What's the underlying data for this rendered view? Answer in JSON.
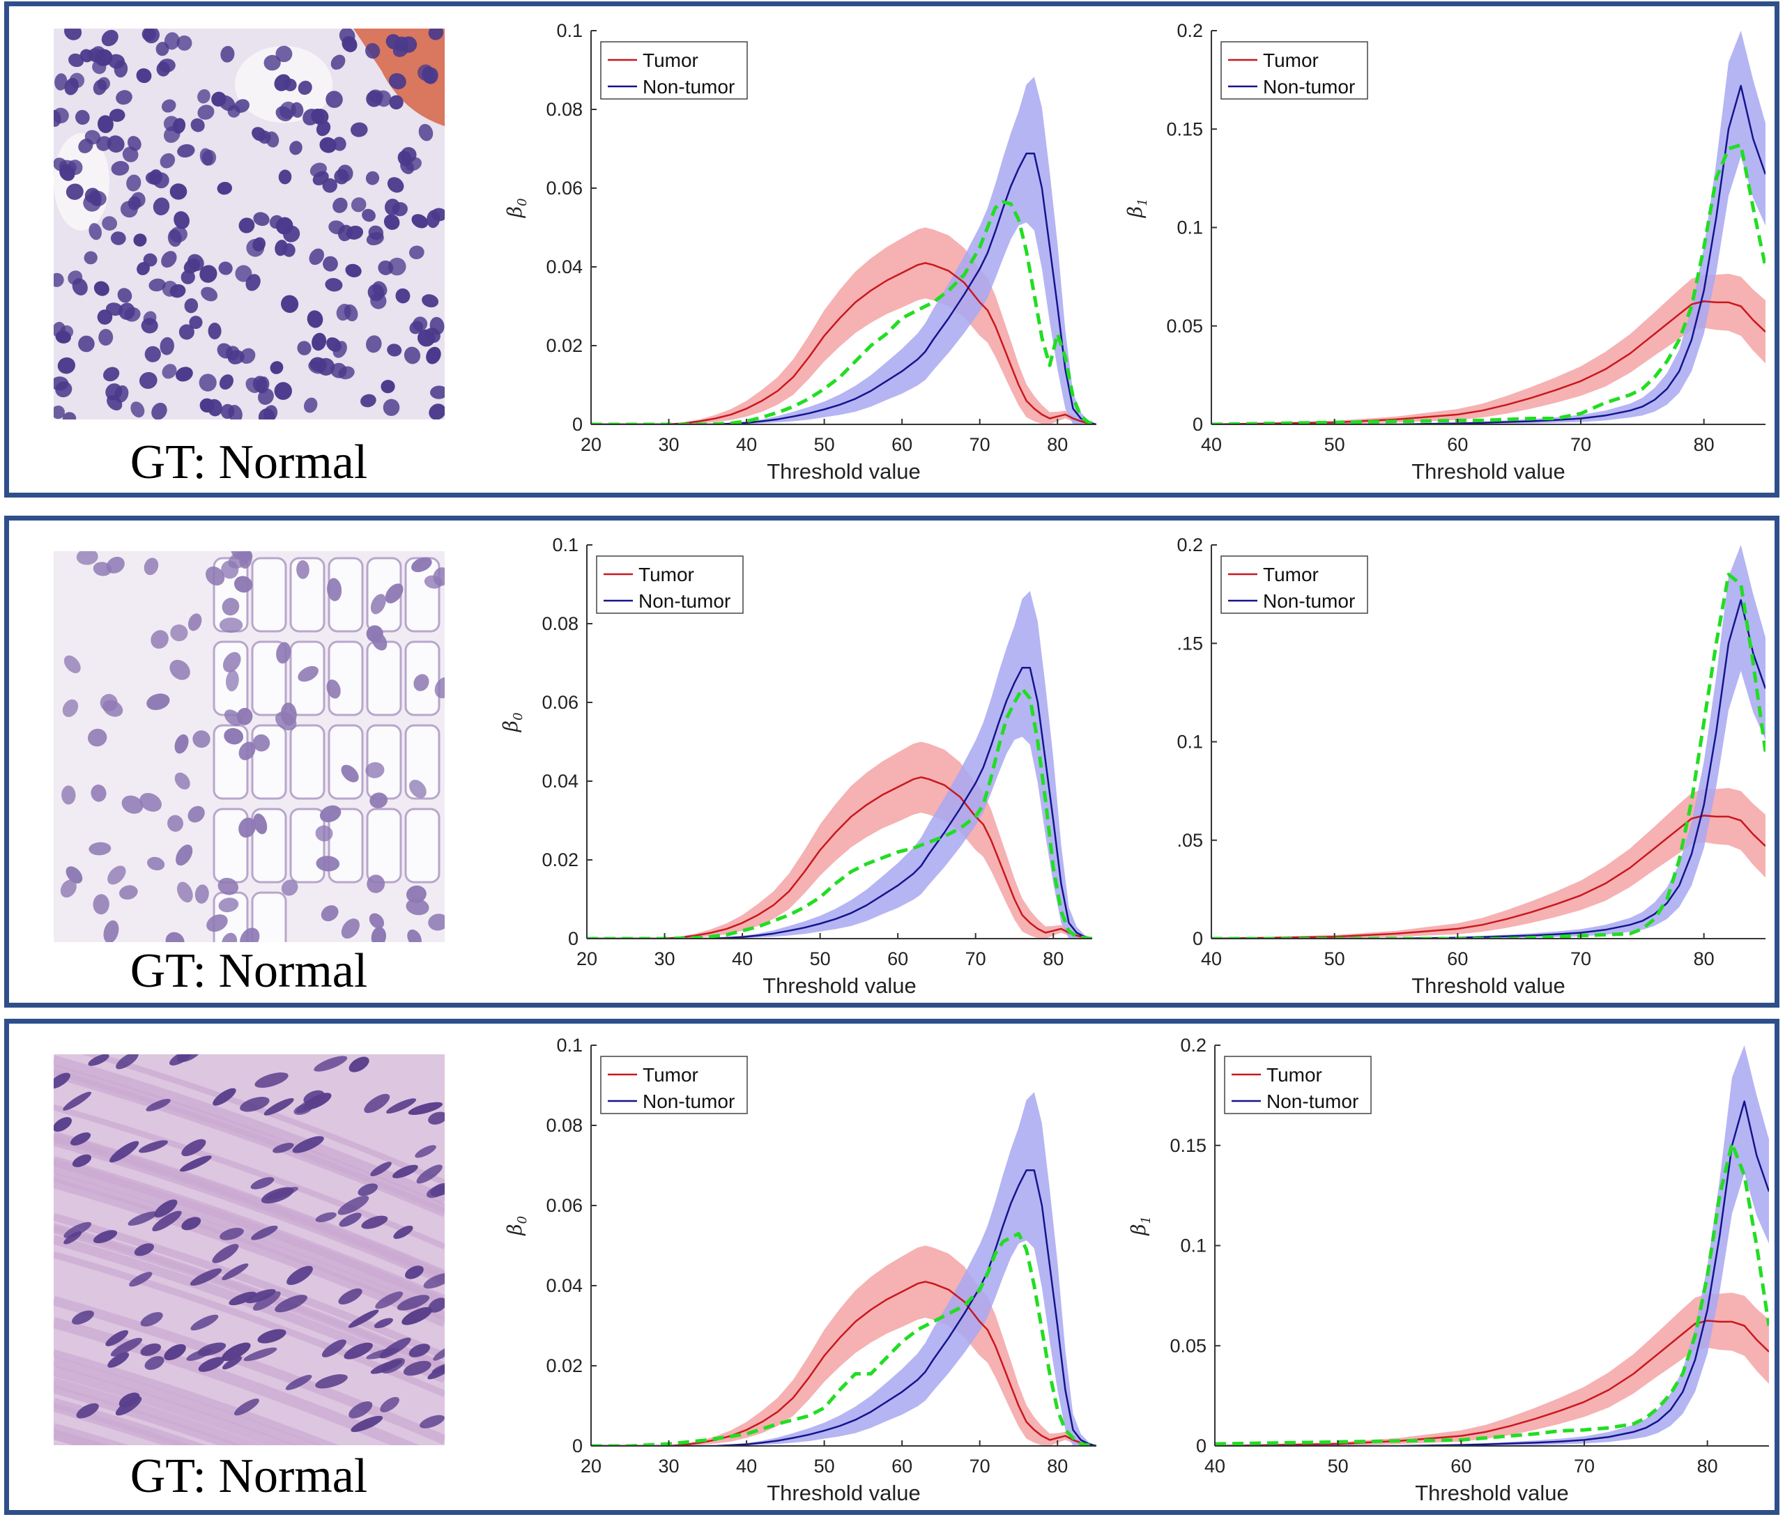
{
  "colors": {
    "tumor": "#c8181e",
    "tumor_band": "#f4a3a5",
    "nontumor": "#14148c",
    "nontumor_band": "#a8a8f2",
    "sample": "#22dd22",
    "frame": "#2f4f8a"
  },
  "panels": [
    {
      "caption": "GT: Normal",
      "tissue": "lymphocyte-rich tissue"
    },
    {
      "caption": "GT: Normal",
      "tissue": "glandular tissue"
    },
    {
      "caption": "GT: Normal",
      "tissue": "stromal tissue"
    }
  ],
  "chart_data": [
    {
      "panel": 0,
      "type": "line",
      "measure": "b0",
      "ylabel": "β0",
      "subscript": "0",
      "xlabel": "Threshold value",
      "xlim": [
        20,
        85
      ],
      "ylim": [
        0,
        0.1
      ],
      "xticks": [
        "20",
        "30",
        "40",
        "50",
        "60",
        "70",
        "80"
      ],
      "yticks": [
        "0",
        "0.02",
        "0.04",
        "0.06",
        "0.08",
        "0.1"
      ],
      "legend": [
        "Tumor",
        "Non-tumor"
      ],
      "legend_loc": "top-left",
      "sample_x": [
        20,
        30,
        35,
        38,
        40,
        42,
        44,
        46,
        48,
        50,
        52,
        54,
        56,
        58,
        60,
        62,
        64,
        66,
        68,
        70,
        71,
        72,
        73,
        74,
        75,
        76,
        77,
        78,
        79,
        80,
        81,
        82,
        83,
        84,
        85
      ],
      "sample_y": [
        0,
        0,
        0,
        0.0003,
        0.0008,
        0.0018,
        0.003,
        0.0045,
        0.0065,
        0.009,
        0.012,
        0.016,
        0.02,
        0.023,
        0.027,
        0.029,
        0.031,
        0.034,
        0.038,
        0.045,
        0.05,
        0.055,
        0.0565,
        0.056,
        0.052,
        0.044,
        0.033,
        0.022,
        0.015,
        0.023,
        0.017,
        0.007,
        0.002,
        0.0005,
        0
      ]
    },
    {
      "panel": 0,
      "type": "line",
      "measure": "b1",
      "ylabel": "β1",
      "subscript": "1",
      "xlabel": "Threshold value",
      "xlim": [
        40,
        85
      ],
      "ylim": [
        0,
        0.2
      ],
      "xticks": [
        "40",
        "50",
        "60",
        "70",
        "80"
      ],
      "yticks": [
        "0",
        "0.05",
        "0.1",
        "0.15",
        "0.2"
      ],
      "legend": [
        "Tumor",
        "Non-tumor"
      ],
      "legend_loc": "top-left",
      "sample_x": [
        40,
        45,
        50,
        55,
        60,
        62,
        64,
        66,
        68,
        70,
        72,
        74,
        75,
        76,
        77,
        78,
        79,
        80,
        81,
        82,
        83,
        84,
        85
      ],
      "sample_y": [
        0,
        0.0005,
        0.001,
        0.0015,
        0.002,
        0.002,
        0.0025,
        0.003,
        0.003,
        0.0055,
        0.011,
        0.015,
        0.018,
        0.024,
        0.032,
        0.043,
        0.06,
        0.09,
        0.125,
        0.14,
        0.142,
        0.11,
        0.08
      ]
    },
    {
      "panel": 1,
      "type": "line",
      "measure": "b0",
      "ylabel": "β0",
      "subscript": "0",
      "xlabel": "Threshold value",
      "xlim": [
        20,
        85
      ],
      "ylim": [
        0,
        0.1
      ],
      "xticks": [
        "20",
        "30",
        "40",
        "50",
        "60",
        "70",
        "80"
      ],
      "yticks": [
        "0",
        "0.02",
        "0.04",
        "0.06",
        "0.08",
        "0.1"
      ],
      "legend": [
        "Tumor",
        "Non-tumor"
      ],
      "legend_loc": "top-left",
      "sample_x": [
        20,
        30,
        35,
        38,
        40,
        42,
        44,
        46,
        48,
        50,
        52,
        54,
        56,
        58,
        60,
        62,
        64,
        66,
        68,
        70,
        71,
        72,
        73,
        74,
        75,
        76,
        77,
        78,
        79,
        80,
        81,
        82,
        83,
        84,
        85
      ],
      "sample_y": [
        0,
        0,
        0.0003,
        0.001,
        0.002,
        0.003,
        0.0045,
        0.006,
        0.008,
        0.0105,
        0.014,
        0.017,
        0.019,
        0.0205,
        0.022,
        0.023,
        0.0245,
        0.026,
        0.028,
        0.031,
        0.034,
        0.041,
        0.049,
        0.056,
        0.06,
        0.0635,
        0.061,
        0.05,
        0.035,
        0.018,
        0.007,
        0.002,
        0.0005,
        0.0002,
        0
      ]
    },
    {
      "panel": 1,
      "type": "line",
      "measure": "b1",
      "ylabel": "",
      "subscript": "",
      "xlabel": "Threshold value",
      "xlim": [
        40,
        85
      ],
      "ylim": [
        0,
        0.2
      ],
      "xticks": [
        "40",
        "50",
        "60",
        "70",
        "80"
      ],
      "yticks": [
        "0",
        ".05",
        "0.1",
        ".15",
        "0.2"
      ],
      "legend": [
        "Tumor",
        "Non-tumor"
      ],
      "legend_loc": "top-left",
      "sample_x": [
        40,
        45,
        50,
        55,
        60,
        62,
        64,
        66,
        68,
        70,
        72,
        74,
        75,
        76,
        77,
        78,
        79,
        80,
        81,
        82,
        83,
        84,
        85
      ],
      "sample_y": [
        0,
        0,
        0,
        0,
        0,
        0,
        0,
        0.0005,
        0.001,
        0.0015,
        0.002,
        0.0025,
        0.005,
        0.01,
        0.02,
        0.04,
        0.07,
        0.11,
        0.15,
        0.185,
        0.18,
        0.14,
        0.095
      ]
    },
    {
      "panel": 2,
      "type": "line",
      "measure": "b0",
      "ylabel": "β0",
      "subscript": "0",
      "xlabel": "Threshold value",
      "xlim": [
        20,
        85
      ],
      "ylim": [
        0,
        0.1
      ],
      "xticks": [
        "20",
        "30",
        "40",
        "50",
        "60",
        "70",
        "80"
      ],
      "yticks": [
        "0",
        "0.02",
        "0.04",
        "0.06",
        "0.08",
        "0.1"
      ],
      "legend": [
        "Tumor",
        "Non-tumor"
      ],
      "legend_loc": "top-left",
      "sample_x": [
        20,
        25,
        30,
        35,
        40,
        44,
        46,
        48,
        50,
        52,
        54,
        56,
        58,
        60,
        62,
        64,
        66,
        68,
        70,
        71,
        72,
        73,
        74,
        75,
        76,
        77,
        78,
        79,
        80,
        81,
        82,
        83,
        84,
        85
      ],
      "sample_y": [
        0,
        0,
        0.0005,
        0.0015,
        0.003,
        0.0055,
        0.0065,
        0.0075,
        0.0095,
        0.014,
        0.018,
        0.018,
        0.022,
        0.026,
        0.029,
        0.031,
        0.033,
        0.035,
        0.039,
        0.043,
        0.048,
        0.051,
        0.052,
        0.053,
        0.049,
        0.04,
        0.029,
        0.018,
        0.009,
        0.004,
        0.002,
        0.0005,
        0.0002,
        0
      ]
    },
    {
      "panel": 2,
      "type": "line",
      "measure": "b1",
      "ylabel": "β1",
      "subscript": "1",
      "xlabel": "Threshold value",
      "xlim": [
        40,
        85
      ],
      "ylim": [
        0,
        0.2
      ],
      "xticks": [
        "40",
        "50",
        "60",
        "70",
        "80"
      ],
      "yticks": [
        "0",
        "0.05",
        "0.1",
        "0.15",
        "0.2"
      ],
      "legend": [
        "Tumor",
        "Non-tumor"
      ],
      "legend_loc": "top-left",
      "sample_x": [
        40,
        45,
        50,
        55,
        60,
        62,
        64,
        66,
        68,
        70,
        72,
        74,
        75,
        76,
        77,
        78,
        79,
        80,
        81,
        82,
        83,
        84,
        85
      ],
      "sample_y": [
        0.001,
        0.0015,
        0.002,
        0.0025,
        0.003,
        0.004,
        0.005,
        0.006,
        0.0075,
        0.008,
        0.009,
        0.011,
        0.014,
        0.019,
        0.026,
        0.036,
        0.055,
        0.085,
        0.125,
        0.151,
        0.135,
        0.1,
        0.06
      ]
    }
  ],
  "reference_curves": {
    "b0": {
      "x": [
        20,
        25,
        30,
        32,
        34,
        36,
        38,
        40,
        42,
        44,
        46,
        48,
        50,
        52,
        54,
        56,
        58,
        60,
        62,
        63,
        64,
        66,
        68,
        70,
        71,
        72,
        73,
        74,
        75,
        76,
        77,
        78,
        79,
        80,
        81,
        82,
        83,
        84,
        85
      ],
      "tumor": [
        0,
        0,
        0,
        0.0003,
        0.0008,
        0.0015,
        0.0025,
        0.004,
        0.006,
        0.0085,
        0.012,
        0.017,
        0.0225,
        0.027,
        0.031,
        0.034,
        0.0365,
        0.0385,
        0.0405,
        0.041,
        0.0405,
        0.039,
        0.036,
        0.031,
        0.029,
        0.025,
        0.02,
        0.015,
        0.01,
        0.006,
        0.004,
        0.0025,
        0.0015,
        0.002,
        0.0025,
        0.0015,
        0.0008,
        0.0003,
        0
      ],
      "tumor_sd": [
        0,
        0,
        0,
        0.0002,
        0.0005,
        0.0009,
        0.0014,
        0.002,
        0.0028,
        0.0035,
        0.0045,
        0.0055,
        0.0065,
        0.0072,
        0.0078,
        0.0082,
        0.0085,
        0.0088,
        0.009,
        0.009,
        0.009,
        0.009,
        0.0088,
        0.0085,
        0.0082,
        0.0078,
        0.007,
        0.0062,
        0.0052,
        0.0042,
        0.0032,
        0.0024,
        0.0016,
        0.0012,
        0.001,
        0.0008,
        0.0005,
        0.0002,
        0
      ],
      "nontumor": [
        0,
        0,
        0,
        0,
        0,
        0,
        0.0002,
        0.0004,
        0.0008,
        0.0013,
        0.002,
        0.0028,
        0.0038,
        0.005,
        0.0065,
        0.0085,
        0.011,
        0.0135,
        0.0165,
        0.0185,
        0.0215,
        0.027,
        0.033,
        0.0395,
        0.0435,
        0.049,
        0.055,
        0.0605,
        0.065,
        0.0688,
        0.0688,
        0.06,
        0.045,
        0.03,
        0.014,
        0.004,
        0.0015,
        0.0005,
        0
      ],
      "nontumor_sd": [
        0,
        0,
        0,
        0,
        0,
        0,
        0.0002,
        0.0003,
        0.0005,
        0.0008,
        0.0012,
        0.0016,
        0.002,
        0.0026,
        0.0033,
        0.004,
        0.0048,
        0.0057,
        0.0066,
        0.0072,
        0.0078,
        0.0088,
        0.0098,
        0.0108,
        0.0114,
        0.012,
        0.0128,
        0.0135,
        0.0145,
        0.0175,
        0.0195,
        0.0205,
        0.019,
        0.016,
        0.01,
        0.004,
        0.0015,
        0.0005,
        0
      ]
    },
    "b1": {
      "x": [
        40,
        45,
        50,
        55,
        60,
        62,
        64,
        66,
        68,
        70,
        72,
        74,
        75,
        76,
        77,
        78,
        79,
        80,
        81,
        82,
        83,
        84,
        85
      ],
      "tumor": [
        0,
        0.0005,
        0.001,
        0.0025,
        0.005,
        0.007,
        0.01,
        0.0135,
        0.0175,
        0.022,
        0.028,
        0.036,
        0.041,
        0.046,
        0.051,
        0.056,
        0.061,
        0.0625,
        0.062,
        0.062,
        0.06,
        0.053,
        0.047
      ],
      "tumor_sd": [
        0,
        0.0004,
        0.0008,
        0.0015,
        0.0028,
        0.0035,
        0.0045,
        0.0055,
        0.0065,
        0.0075,
        0.0088,
        0.0098,
        0.0104,
        0.011,
        0.0118,
        0.0125,
        0.013,
        0.0135,
        0.014,
        0.0145,
        0.015,
        0.0155,
        0.016
      ],
      "nontumor": [
        0,
        0,
        0,
        0,
        0.0005,
        0.0008,
        0.0012,
        0.0016,
        0.0022,
        0.003,
        0.0045,
        0.007,
        0.009,
        0.0125,
        0.018,
        0.027,
        0.043,
        0.068,
        0.105,
        0.15,
        0.172,
        0.145,
        0.127
      ],
      "nontumor_sd": [
        0,
        0,
        0,
        0,
        0.0004,
        0.0006,
        0.0008,
        0.0011,
        0.0014,
        0.0018,
        0.0025,
        0.0035,
        0.0045,
        0.006,
        0.008,
        0.011,
        0.016,
        0.022,
        0.028,
        0.034,
        0.036,
        0.03,
        0.026
      ]
    }
  }
}
